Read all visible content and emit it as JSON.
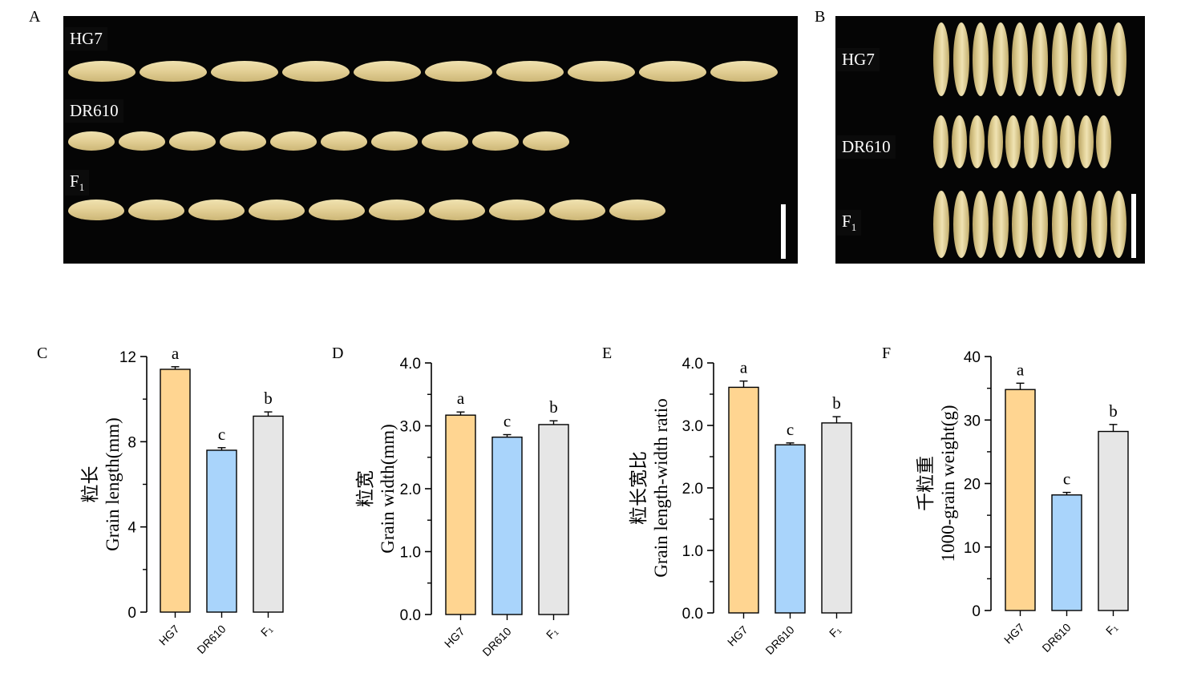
{
  "panels": {
    "A": {
      "letter": "A",
      "rows": [
        {
          "label": "HG7",
          "count": 10
        },
        {
          "label": "DR610",
          "count": 10
        },
        {
          "label": "F",
          "sub": "1",
          "count": 10
        }
      ]
    },
    "B": {
      "letter": "B",
      "rows": [
        {
          "label": "HG7",
          "count": 10
        },
        {
          "label": "DR610",
          "count": 10
        },
        {
          "label": "F",
          "sub": "1",
          "count": 10
        }
      ]
    }
  },
  "colors": {
    "HG7": "#ffd591",
    "DR610": "#a9d4fb",
    "F1": "#e6e6e6"
  },
  "chart_data": [
    {
      "panel": "C",
      "type": "bar",
      "categories": [
        "HG7",
        "DR610",
        "F₁"
      ],
      "values": [
        11.4,
        7.6,
        9.2
      ],
      "errors": [
        0.12,
        0.12,
        0.2
      ],
      "sig_letters": [
        "a",
        "c",
        "b"
      ],
      "ylabel_cn": "粒长",
      "ylabel": "Grain length(mm)",
      "ylim": [
        0,
        12
      ],
      "yticks": [
        "0",
        "4",
        "8",
        "12"
      ],
      "ytick_values": [
        0,
        4,
        8,
        12
      ]
    },
    {
      "panel": "D",
      "type": "bar",
      "categories": [
        "HG7",
        "DR610",
        "F₁"
      ],
      "values": [
        3.17,
        2.82,
        3.02
      ],
      "errors": [
        0.05,
        0.04,
        0.06
      ],
      "sig_letters": [
        "a",
        "c",
        "b"
      ],
      "ylabel_cn": "粒宽",
      "ylabel": "Grain width(mm)",
      "ylim": [
        0,
        4
      ],
      "yticks": [
        "0.0",
        "1.0",
        "2.0",
        "3.0",
        "4.0"
      ],
      "ytick_values": [
        0,
        1,
        2,
        3,
        4
      ]
    },
    {
      "panel": "E",
      "type": "bar",
      "categories": [
        "HG7",
        "DR610",
        "F₁"
      ],
      "values": [
        3.61,
        2.69,
        3.04
      ],
      "errors": [
        0.1,
        0.03,
        0.1
      ],
      "sig_letters": [
        "a",
        "c",
        "b"
      ],
      "ylabel_cn": "粒长宽比",
      "ylabel": "Grain length-width ratio",
      "ylim": [
        0,
        4
      ],
      "yticks": [
        "0.0",
        "1.0",
        "2.0",
        "3.0",
        "4.0"
      ],
      "ytick_values": [
        0,
        1,
        2,
        3,
        4
      ]
    },
    {
      "panel": "F",
      "type": "bar",
      "categories": [
        "HG7",
        "DR610",
        "F₁"
      ],
      "values": [
        34.8,
        18.2,
        28.2
      ],
      "errors": [
        1.0,
        0.4,
        1.1
      ],
      "sig_letters": [
        "a",
        "c",
        "b"
      ],
      "ylabel_cn": "千粒重",
      "ylabel": "1000-grain weight(g)",
      "ylim": [
        0,
        40
      ],
      "yticks": [
        "0",
        "10",
        "20",
        "30",
        "40"
      ],
      "ytick_values": [
        0,
        10,
        20,
        30,
        40
      ]
    }
  ]
}
